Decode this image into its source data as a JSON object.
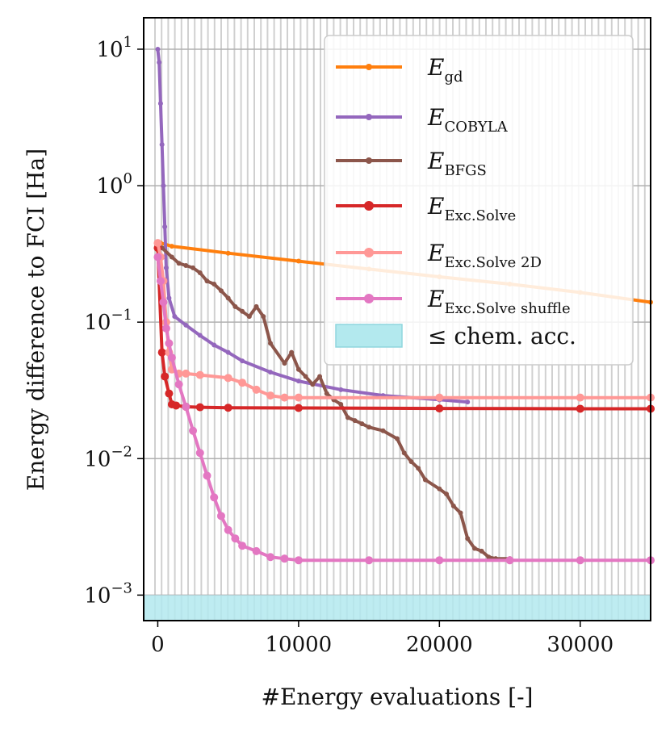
{
  "chart_data": {
    "type": "line",
    "title": "",
    "xlabel": "#Energy evaluations [-]",
    "ylabel": "Energy difference to FCI [Ha]",
    "yscale": "log",
    "xlim": [
      -1000,
      35000
    ],
    "ylim": [
      0.00065,
      17
    ],
    "x_ticks": [
      0,
      10000,
      20000,
      30000
    ],
    "x_tick_labels": [
      "0",
      "10000",
      "20000",
      "30000"
    ],
    "y_ticks": [
      0.001,
      0.01,
      0.1,
      1,
      10
    ],
    "y_tick_labels": [
      {
        "base": "10",
        "exp": "−3"
      },
      {
        "base": "10",
        "exp": "−2"
      },
      {
        "base": "10",
        "exp": "−1"
      },
      {
        "base": "10",
        "exp": "0"
      },
      {
        "base": "10",
        "exp": "1"
      }
    ],
    "grid": true,
    "legend_position": "top-right",
    "shaded_region": {
      "label": "≤ chem. acc.",
      "y_from": 0.00065,
      "y_to": 0.001,
      "color": "#b3e9ee"
    },
    "series": [
      {
        "name": "gd",
        "label_base": "E",
        "label_sub": "gd",
        "color": "#ff7f0e",
        "marker_size": 3,
        "x": [
          200,
          1000,
          5000,
          10000,
          15000,
          20000,
          25000,
          30000,
          35000
        ],
        "y": [
          0.38,
          0.36,
          0.32,
          0.28,
          0.245,
          0.215,
          0.19,
          0.165,
          0.14
        ]
      },
      {
        "name": "cobyla",
        "label_base": "E",
        "label_sub": "COBYLA",
        "color": "#9467bd",
        "marker_size": 3,
        "x": [
          0,
          100,
          200,
          300,
          400,
          500,
          600,
          800,
          1200,
          2000,
          3000,
          4000,
          5000,
          6000,
          8000,
          10000,
          13000,
          16000,
          20000,
          22000
        ],
        "y": [
          10,
          8,
          4,
          2,
          1,
          0.5,
          0.25,
          0.15,
          0.11,
          0.095,
          0.08,
          0.068,
          0.06,
          0.052,
          0.043,
          0.037,
          0.032,
          0.029,
          0.027,
          0.026
        ]
      },
      {
        "name": "bfgs",
        "label_base": "E",
        "label_sub": "BFGS",
        "color": "#8c564b",
        "marker_size": 3,
        "x": [
          300,
          1000,
          1500,
          2000,
          2500,
          3000,
          3500,
          4000,
          4500,
          5000,
          5500,
          6000,
          6500,
          7000,
          7500,
          8000,
          9000,
          9500,
          10000,
          10500,
          11000,
          11500,
          12000,
          12500,
          13000,
          13500,
          14000,
          14500,
          15000,
          16000,
          17000,
          17500,
          18000,
          18500,
          19000,
          20000,
          20500,
          21000,
          21500,
          22000,
          22500,
          23000,
          23500,
          24000,
          25000
        ],
        "y": [
          0.35,
          0.3,
          0.27,
          0.26,
          0.25,
          0.23,
          0.2,
          0.19,
          0.17,
          0.15,
          0.13,
          0.12,
          0.11,
          0.13,
          0.11,
          0.07,
          0.05,
          0.06,
          0.045,
          0.04,
          0.035,
          0.04,
          0.03,
          0.027,
          0.025,
          0.02,
          0.019,
          0.018,
          0.017,
          0.016,
          0.014,
          0.011,
          0.0095,
          0.0085,
          0.007,
          0.006,
          0.0055,
          0.0045,
          0.004,
          0.0026,
          0.0022,
          0.0021,
          0.0019,
          0.00185,
          0.00185
        ]
      },
      {
        "name": "exc_solve",
        "label_base": "E",
        "label_sub": "Exc.Solve",
        "color": "#d62728",
        "marker_size": 5,
        "x": [
          0,
          300,
          500,
          800,
          1000,
          1300,
          2000,
          3000,
          5000,
          10000,
          20000,
          30000,
          35000
        ],
        "y": [
          0.35,
          0.06,
          0.04,
          0.03,
          0.025,
          0.0245,
          0.024,
          0.0238,
          0.0236,
          0.0235,
          0.0233,
          0.0232,
          0.0232
        ]
      },
      {
        "name": "exc_solve_2d",
        "label_base": "E",
        "label_sub": "Exc.Solve 2D",
        "color": "#ff9896",
        "marker_size": 5,
        "x": [
          0,
          200,
          400,
          600,
          800,
          1000,
          1500,
          2000,
          3000,
          5000,
          6000,
          7000,
          8000,
          9000,
          10000,
          20000,
          30000,
          35000
        ],
        "y": [
          0.38,
          0.3,
          0.2,
          0.1,
          0.06,
          0.045,
          0.042,
          0.042,
          0.041,
          0.039,
          0.036,
          0.032,
          0.029,
          0.028,
          0.028,
          0.028,
          0.028,
          0.028
        ]
      },
      {
        "name": "exc_solve_shuffle",
        "label_base": "E",
        "label_sub": "Exc.Solve shuffle",
        "color": "#e377c2",
        "marker_size": 5,
        "x": [
          0,
          200,
          400,
          600,
          800,
          1000,
          1500,
          2000,
          2500,
          3000,
          3500,
          4000,
          4500,
          5000,
          5500,
          6000,
          7000,
          8000,
          9000,
          10000,
          15000,
          20000,
          25000,
          30000,
          35000
        ],
        "y": [
          0.3,
          0.2,
          0.14,
          0.09,
          0.07,
          0.055,
          0.035,
          0.024,
          0.016,
          0.011,
          0.0075,
          0.0052,
          0.0038,
          0.003,
          0.0026,
          0.0023,
          0.0021,
          0.0019,
          0.00185,
          0.0018,
          0.0018,
          0.0018,
          0.0018,
          0.0018,
          0.0018
        ]
      }
    ]
  }
}
